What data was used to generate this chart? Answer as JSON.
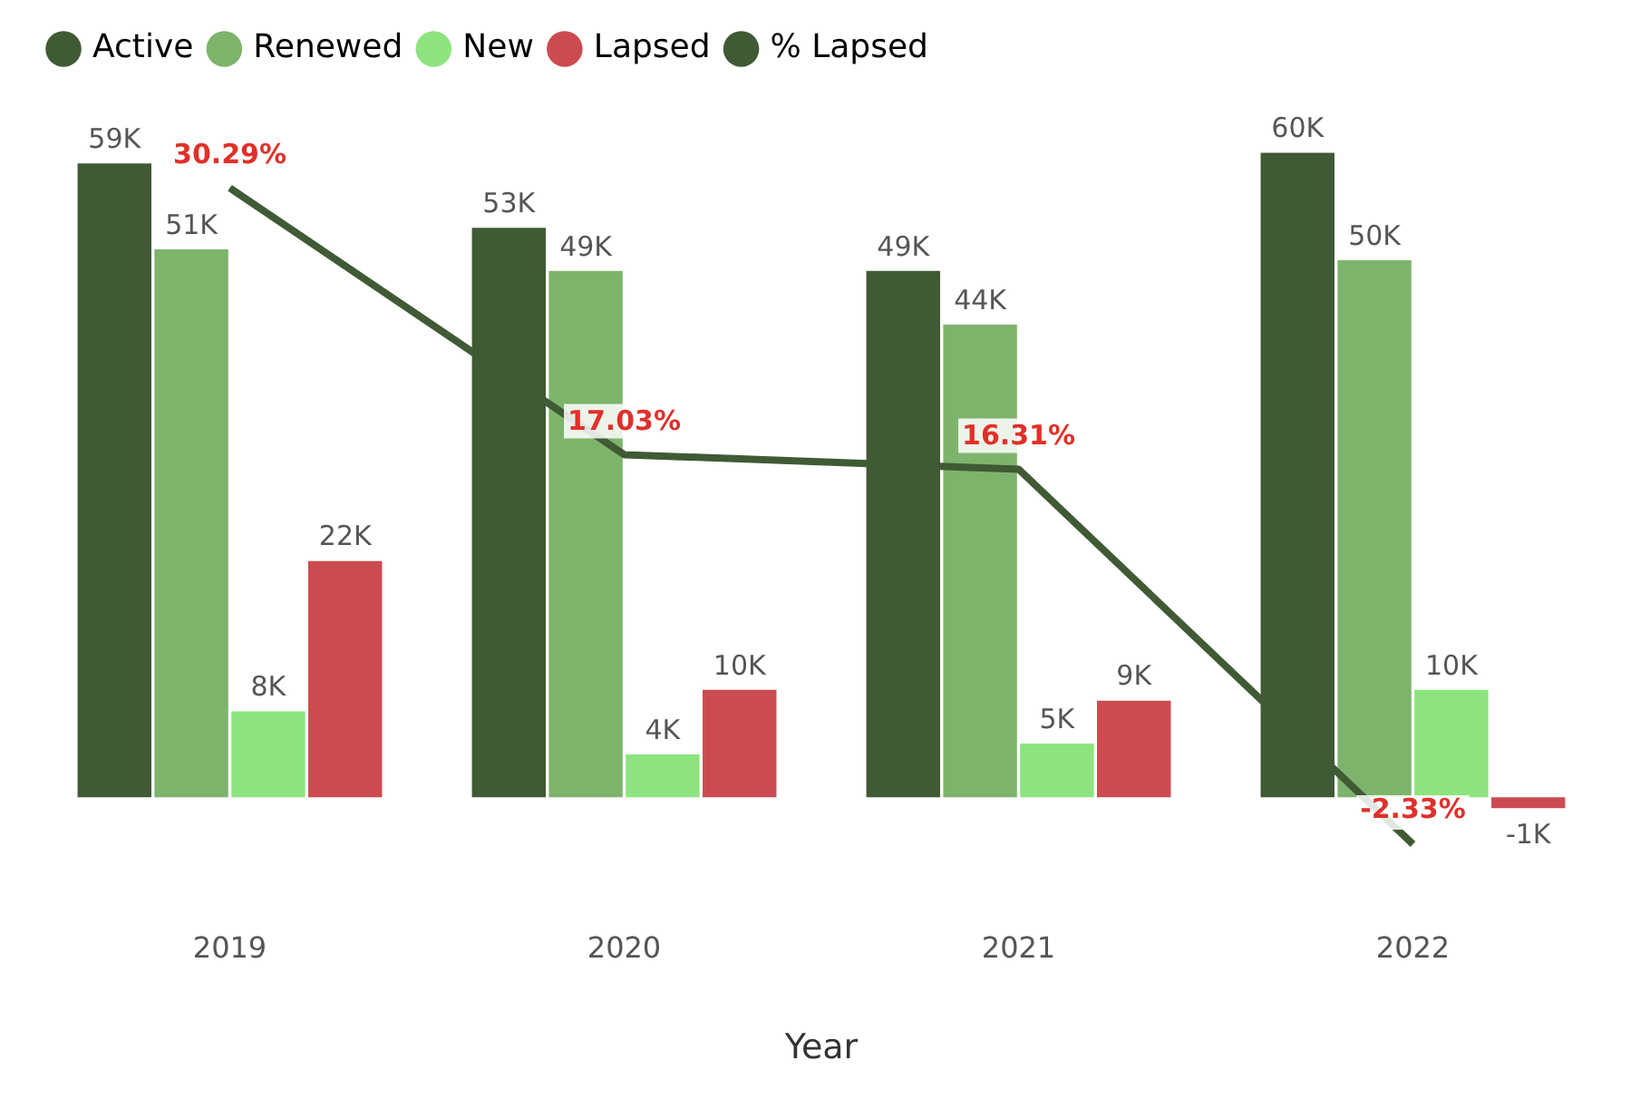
{
  "chart_data": {
    "type": "bar",
    "xlabel": "Year",
    "categories": [
      "2019",
      "2020",
      "2021",
      "2022"
    ],
    "series": [
      {
        "name": "Active",
        "color": "#405a35",
        "values": [
          59,
          53,
          49,
          60
        ],
        "value_labels": [
          "59K",
          "53K",
          "49K",
          "60K"
        ]
      },
      {
        "name": "Renewed",
        "color": "#7db46c",
        "values": [
          51,
          49,
          44,
          50
        ],
        "value_labels": [
          "51K",
          "49K",
          "44K",
          "50K"
        ]
      },
      {
        "name": "New",
        "color": "#8de47f",
        "values": [
          8,
          4,
          5,
          10
        ],
        "value_labels": [
          "8K",
          "4K",
          "5K",
          "10K"
        ]
      },
      {
        "name": "Lapsed",
        "color": "#cc4b50",
        "values": [
          22,
          10,
          9,
          -1
        ],
        "value_labels": [
          "22K",
          "10K",
          "9K",
          "-1K"
        ]
      },
      {
        "name": "% Lapsed",
        "type": "line",
        "axis": "y2",
        "color": "#405a35",
        "values": [
          30.29,
          17.03,
          16.31,
          -2.33
        ],
        "value_labels": [
          "30.29%",
          "17.03%",
          "16.31%",
          "-2.33%"
        ]
      }
    ],
    "tick_labels": "x",
    "grid": false,
    "legend": "top left",
    "marker": "none"
  }
}
